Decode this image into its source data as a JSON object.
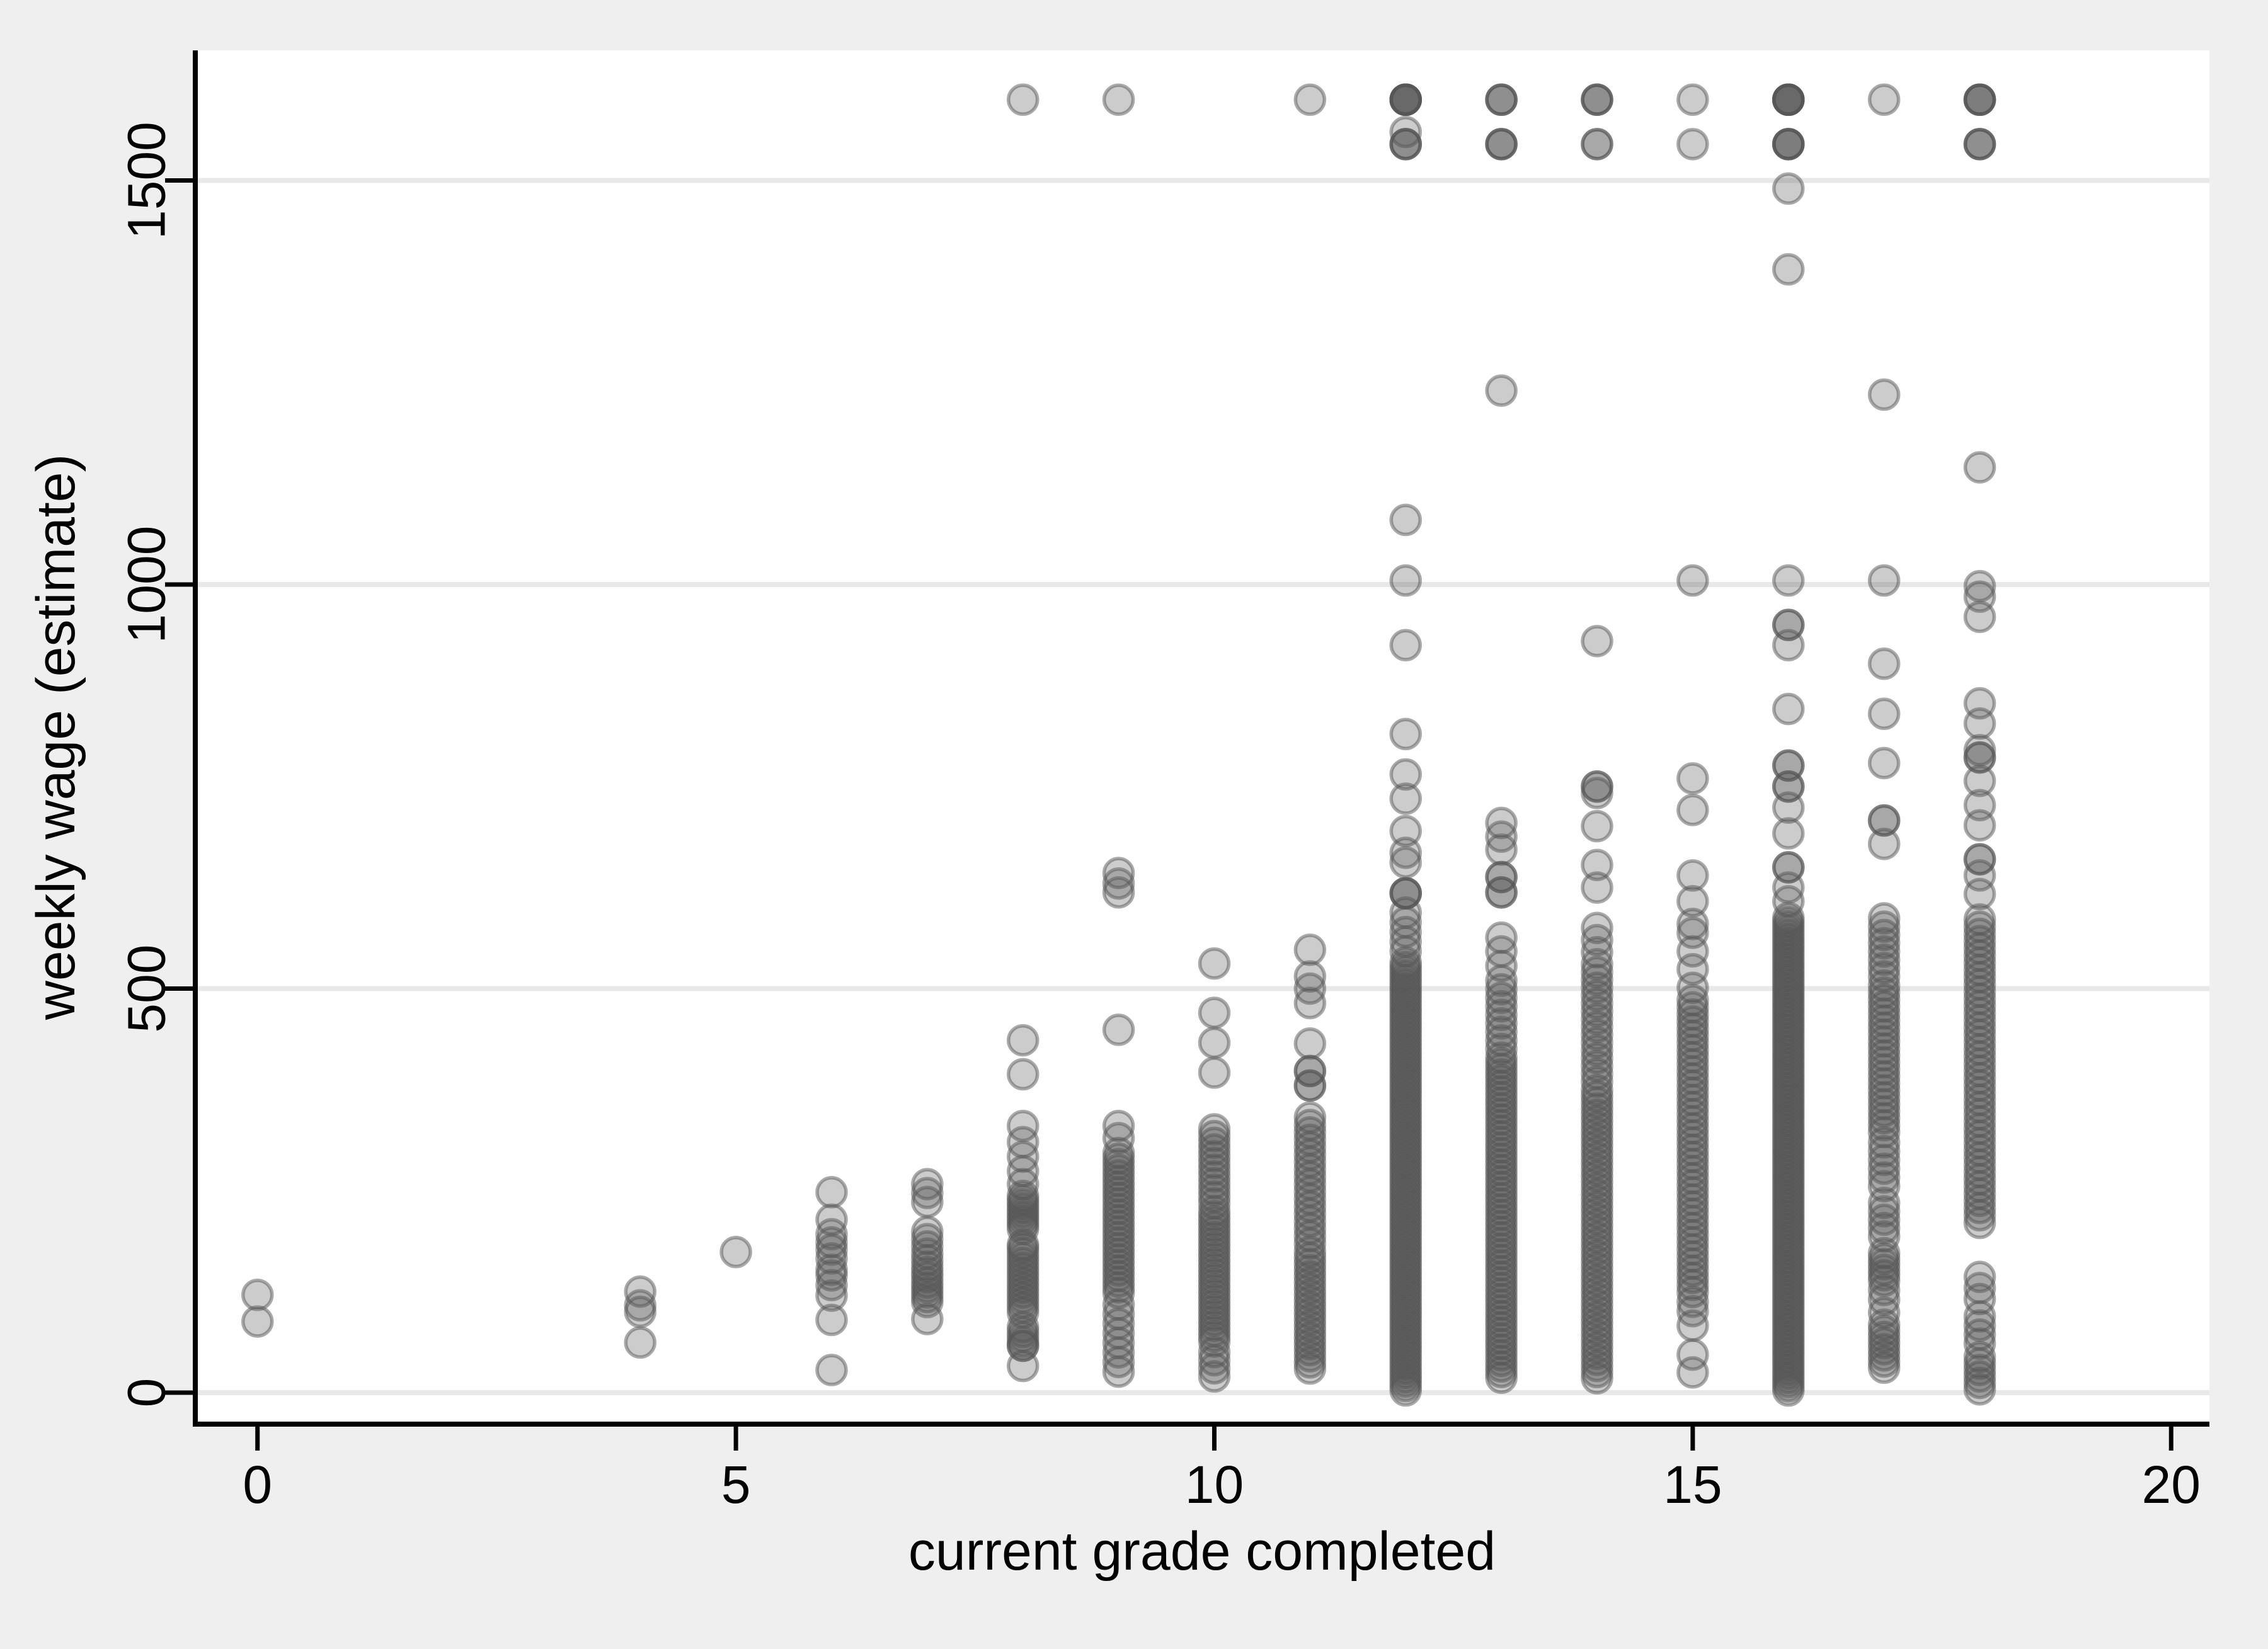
{
  "chart_data": {
    "type": "scatter",
    "title": "",
    "xlabel": "current grade completed",
    "ylabel": "weekly wage (estimate)",
    "xlim": [
      -0.65,
      20.4
    ],
    "ylim": [
      -39,
      1661
    ],
    "xticks": [
      0,
      5,
      10,
      15,
      20
    ],
    "yticks": [
      0,
      500,
      1000,
      1500
    ],
    "grid": "horizontal-only",
    "legend": "none",
    "colors": {
      "outer_background": "#efefef",
      "plot_background": "#ffffff",
      "gridline": "#e8e8e8",
      "axis_line": "#000000",
      "marker_gray": "#555555"
    },
    "marker": {
      "shape": "circle",
      "radius": 23,
      "fill": "#555555",
      "fill_opacity": 0.3,
      "stroke": "#555555",
      "stroke_opacity": 0.5,
      "stroke_width": 5.5
    },
    "columns": [
      {
        "grade": 0,
        "points": [
          [
            121,
            1
          ],
          [
            88,
            1
          ]
        ],
        "bands": []
      },
      {
        "grade": 4,
        "points": [
          [
            125,
            1
          ],
          [
            108,
            1
          ],
          [
            100,
            1
          ],
          [
            62,
            1
          ]
        ],
        "bands": []
      },
      {
        "grade": 5,
        "points": [
          [
            174,
            1
          ]
        ],
        "bands": []
      },
      {
        "grade": 6,
        "points": [
          [
            248,
            1
          ],
          [
            214,
            1
          ],
          [
            196,
            1
          ],
          [
            186,
            1
          ],
          [
            177,
            1
          ],
          [
            166,
            1
          ],
          [
            152,
            1
          ],
          [
            145,
            1
          ],
          [
            133,
            1
          ],
          [
            120,
            1
          ],
          [
            90,
            1
          ],
          [
            28,
            1
          ]
        ],
        "bands": []
      },
      {
        "grade": 7,
        "points": [
          [
            258,
            1
          ],
          [
            247,
            1
          ],
          [
            236,
            1
          ],
          [
            199,
            1
          ],
          [
            190,
            1
          ],
          [
            181,
            1
          ],
          [
            172,
            1
          ],
          [
            164,
            1
          ],
          [
            156,
            1
          ],
          [
            149,
            1
          ],
          [
            143,
            1
          ],
          [
            136,
            1
          ],
          [
            130,
            1
          ],
          [
            124,
            1
          ],
          [
            118,
            1
          ],
          [
            112,
            1
          ],
          [
            91,
            1
          ]
        ],
        "bands": []
      },
      {
        "grade": 8,
        "points": [
          [
            1600,
            1
          ],
          [
            436,
            1
          ],
          [
            394,
            1
          ],
          [
            330,
            1
          ],
          [
            310,
            1
          ],
          [
            292,
            1
          ],
          [
            274,
            1
          ],
          [
            258,
            1
          ],
          [
            183,
            1
          ],
          [
            58,
            2
          ],
          [
            33,
            1
          ]
        ],
        "bands": [
          [
            200,
            246,
            9
          ],
          [
            96,
            182,
            14
          ],
          [
            60,
            84,
            4
          ]
        ]
      },
      {
        "grade": 9,
        "points": [
          [
            1600,
            1
          ],
          [
            643,
            1
          ],
          [
            630,
            1
          ],
          [
            619,
            1
          ],
          [
            449,
            1
          ],
          [
            330,
            1
          ],
          [
            315,
            1
          ]
        ],
        "bands": [
          [
            120,
            300,
            26
          ],
          [
            20,
            115,
            8
          ]
        ]
      },
      {
        "grade": 10,
        "points": [
          [
            531,
            1
          ],
          [
            470,
            1
          ],
          [
            433,
            1
          ],
          [
            396,
            1
          ]
        ],
        "bands": [
          [
            230,
            330,
            12
          ],
          [
            60,
            228,
            26
          ],
          [
            15,
            55,
            4
          ]
        ]
      },
      {
        "grade": 11,
        "points": [
          [
            1600,
            1
          ],
          [
            548,
            1
          ],
          [
            515,
            1
          ],
          [
            500,
            1
          ],
          [
            482,
            1
          ],
          [
            432,
            1
          ],
          [
            398,
            2
          ],
          [
            380,
            2
          ]
        ],
        "bands": [
          [
            180,
            345,
            18
          ],
          [
            26,
            178,
            20
          ]
        ]
      },
      {
        "grade": 12,
        "points": [
          [
            1600,
            6
          ],
          [
            1560,
            1
          ],
          [
            1545,
            3
          ],
          [
            1080,
            1
          ],
          [
            1005,
            1
          ],
          [
            925,
            1
          ],
          [
            815,
            1
          ],
          [
            765,
            1
          ],
          [
            735,
            1
          ],
          [
            695,
            1
          ],
          [
            668,
            1
          ],
          [
            656,
            1
          ],
          [
            618,
            3
          ]
        ],
        "bands": [
          [
            540,
            600,
            5
          ],
          [
            0,
            535,
            100
          ]
        ]
      },
      {
        "grade": 13,
        "points": [
          [
            1600,
            3
          ],
          [
            1545,
            3
          ],
          [
            1240,
            1
          ],
          [
            705,
            1
          ],
          [
            688,
            1
          ],
          [
            672,
            1
          ],
          [
            638,
            2
          ],
          [
            619,
            2
          ],
          [
            563,
            1
          ],
          [
            546,
            1
          ],
          [
            528,
            1
          ]
        ],
        "bands": [
          [
            420,
            515,
            9
          ],
          [
            15,
            418,
            58
          ]
        ]
      },
      {
        "grade": 14,
        "points": [
          [
            1600,
            3
          ],
          [
            1545,
            2
          ],
          [
            930,
            1
          ],
          [
            750,
            2
          ],
          [
            742,
            1
          ],
          [
            701,
            1
          ],
          [
            653,
            1
          ],
          [
            625,
            1
          ],
          [
            575,
            1
          ],
          [
            560,
            1
          ],
          [
            545,
            1
          ]
        ],
        "bands": [
          [
            380,
            535,
            16
          ],
          [
            14,
            378,
            48
          ]
        ]
      },
      {
        "grade": 15,
        "points": [
          [
            1600,
            1
          ],
          [
            1545,
            1
          ],
          [
            1005,
            1
          ],
          [
            760,
            1
          ],
          [
            721,
            1
          ],
          [
            640,
            1
          ],
          [
            608,
            1
          ],
          [
            580,
            1
          ],
          [
            569,
            1
          ],
          [
            546,
            1
          ],
          [
            524,
            1
          ],
          [
            501,
            1
          ],
          [
            83,
            1
          ],
          [
            47,
            1
          ],
          [
            25,
            1
          ]
        ],
        "bands": [
          [
            120,
            490,
            42
          ],
          [
            95,
            118,
            2
          ]
        ]
      },
      {
        "grade": 16,
        "points": [
          [
            1600,
            6
          ],
          [
            1545,
            4
          ],
          [
            1490,
            1
          ],
          [
            1390,
            1
          ],
          [
            1005,
            1
          ],
          [
            950,
            2
          ],
          [
            925,
            1
          ],
          [
            846,
            1
          ],
          [
            776,
            2
          ],
          [
            750,
            2
          ],
          [
            724,
            1
          ],
          [
            692,
            1
          ],
          [
            650,
            2
          ],
          [
            625,
            1
          ],
          [
            608,
            1
          ]
        ],
        "bands": [
          [
            0,
            590,
            115
          ]
        ]
      },
      {
        "grade": 17,
        "points": [
          [
            1600,
            1
          ],
          [
            1235,
            1
          ],
          [
            1005,
            1
          ],
          [
            902,
            1
          ],
          [
            840,
            1
          ],
          [
            779,
            1
          ],
          [
            708,
            2
          ],
          [
            679,
            1
          ],
          [
            127,
            1
          ],
          [
            115,
            1
          ],
          [
            99,
            1
          ]
        ],
        "bands": [
          [
            510,
            592,
            8
          ],
          [
            318,
            508,
            22
          ],
          [
            250,
            315,
            6
          ],
          [
            188,
            240,
            5
          ],
          [
            135,
            176,
            6
          ],
          [
            27,
            88,
            8
          ]
        ]
      },
      {
        "grade": 18,
        "points": [
          [
            1600,
            4
          ],
          [
            1545,
            3
          ],
          [
            1145,
            1
          ],
          [
            998,
            1
          ],
          [
            985,
            1
          ],
          [
            960,
            1
          ],
          [
            853,
            1
          ],
          [
            828,
            1
          ],
          [
            795,
            1
          ],
          [
            786,
            2
          ],
          [
            757,
            1
          ],
          [
            727,
            1
          ],
          [
            702,
            1
          ],
          [
            660,
            2
          ],
          [
            640,
            1
          ],
          [
            617,
            1
          ],
          [
            210,
            1
          ]
        ],
        "bands": [
          [
            215,
            590,
            42
          ],
          [
            109,
            150,
            3
          ],
          [
            55,
            100,
            4
          ],
          [
            0,
            48,
            6
          ]
        ]
      }
    ]
  }
}
